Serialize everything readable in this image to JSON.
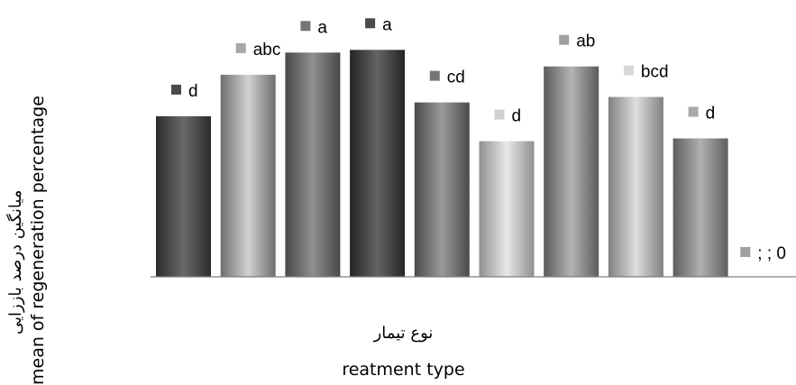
{
  "chart_data": {
    "type": "bar",
    "ylabel_fa": "میانگین درصد باززایی",
    "ylabel_en": "mean of regeneration percentage",
    "xlabel_fa": "نوع تیمار",
    "xlabel_en": "reatment type",
    "grid": false,
    "ylim": [
      0,
      100
    ],
    "bars": [
      {
        "value": 58,
        "label": "d"
      },
      {
        "value": 73,
        "label": "abc"
      },
      {
        "value": 81,
        "label": "a"
      },
      {
        "value": 82,
        "label": "a"
      },
      {
        "value": 63,
        "label": "cd"
      },
      {
        "value": 49,
        "label": "d"
      },
      {
        "value": 76,
        "label": "ab"
      },
      {
        "value": 65,
        "label": "bcd"
      },
      {
        "value": 50,
        "label": "d"
      },
      {
        "value": 0,
        "label": "; ; 0"
      }
    ]
  },
  "colors": {
    "bar_gradients": [
      [
        "#2b2b2b",
        "#6a6a6a",
        "#2b2b2b"
      ],
      [
        "#6e6e6e",
        "#d2d2d2",
        "#6e6e6e"
      ],
      [
        "#484848",
        "#909090",
        "#484848"
      ],
      [
        "#252525",
        "#646464",
        "#252525"
      ],
      [
        "#4a4a4a",
        "#9a9a9a",
        "#4a4a4a"
      ],
      [
        "#909090",
        "#e8e8e8",
        "#909090"
      ],
      [
        "#5a5a5a",
        "#b4b4b4",
        "#5a5a5a"
      ],
      [
        "#808080",
        "#dedede",
        "#808080"
      ],
      [
        "#5e5e5e",
        "#b0b0b0",
        "#5e5e5e"
      ],
      [
        "#9a9a9a",
        "#cccccc",
        "#9a9a9a"
      ]
    ],
    "marker_colors": [
      "#4a4a4a",
      "#a8a8a8",
      "#767676",
      "#4a4a4a",
      "#767676",
      "#d0d0d0",
      "#a0a0a0",
      "#d8d8d8",
      "#a8a8a8",
      "#a0a0a0"
    ],
    "axis": "#7f7f7f"
  }
}
